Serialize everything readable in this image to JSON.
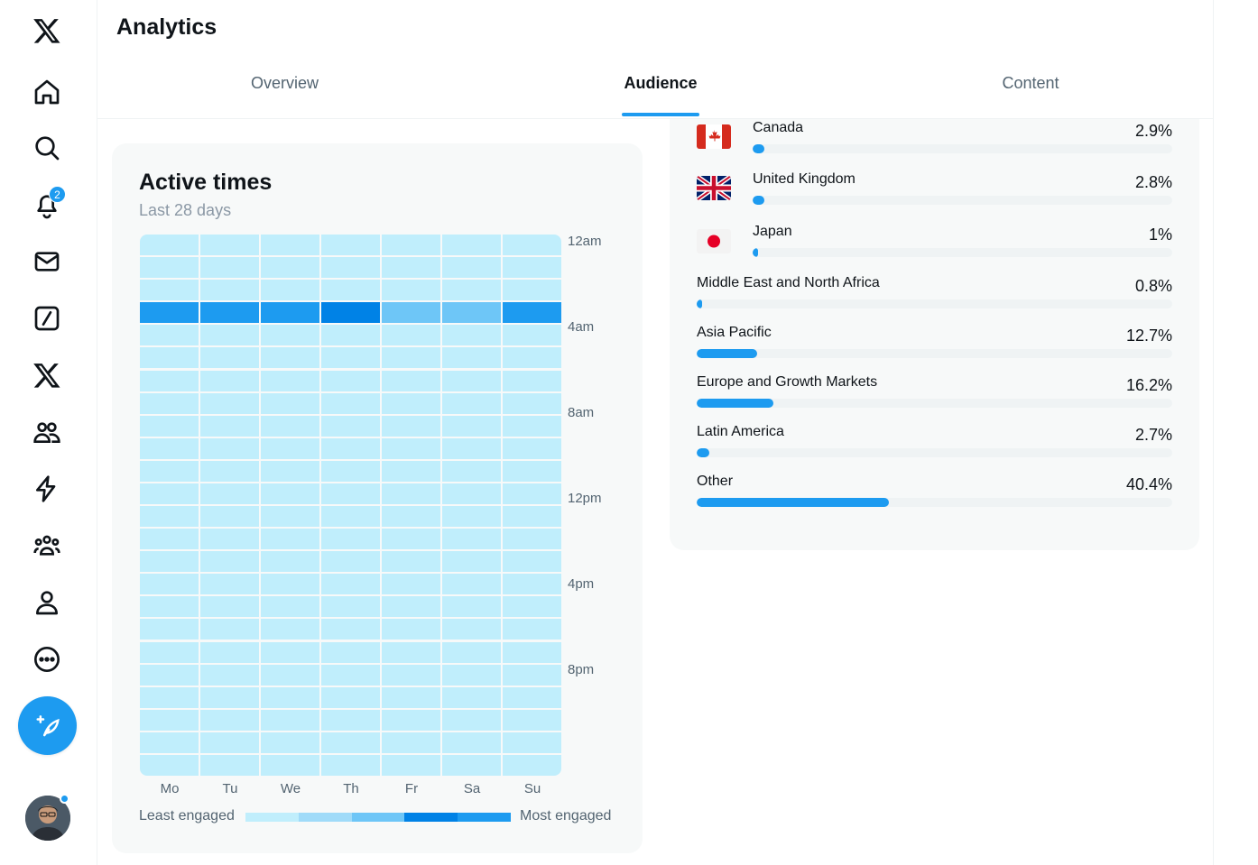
{
  "nav": {
    "items": [
      {
        "name": "x-logo-icon"
      },
      {
        "name": "home-icon"
      },
      {
        "name": "explore-icon"
      },
      {
        "name": "notifications-icon",
        "badge": "2"
      },
      {
        "name": "messages-icon"
      },
      {
        "name": "grok-icon"
      },
      {
        "name": "premium-icon"
      },
      {
        "name": "communities-icon"
      },
      {
        "name": "verified-orgs-icon"
      },
      {
        "name": "groups-icon"
      },
      {
        "name": "profile-icon"
      },
      {
        "name": "more-icon"
      }
    ],
    "post_button": "compose-post-icon"
  },
  "header": {
    "title": "Analytics",
    "tabs": [
      {
        "label": "Overview",
        "active": false
      },
      {
        "label": "Audience",
        "active": true
      },
      {
        "label": "Content",
        "active": false
      }
    ]
  },
  "active_times": {
    "title": "Active times",
    "subtitle": "Last 28 days",
    "y_labels": [
      "12am",
      "4am",
      "8am",
      "12pm",
      "4pm",
      "8pm"
    ],
    "days": [
      "Mo",
      "Tu",
      "We",
      "Th",
      "Fr",
      "Sa",
      "Su"
    ],
    "legend_left": "Least engaged",
    "legend_right": "Most engaged",
    "legend_colors": [
      "#c0eefc",
      "#a0dbf9",
      "#6ec6f7",
      "#0082e6",
      "#1d9bf0"
    ]
  },
  "chart_data": {
    "type": "heatmap",
    "title": "Active times",
    "subtitle": "Last 28 days",
    "x": [
      "Mo",
      "Tu",
      "We",
      "Th",
      "Fr",
      "Sa",
      "Su"
    ],
    "y_ticks": [
      "12am",
      "4am",
      "8am",
      "12pm",
      "4pm",
      "8pm"
    ],
    "hours": 24,
    "highlight_hour": 3,
    "levels_at_highlight_hour": [
      3,
      3,
      3,
      4,
      1,
      1,
      3
    ],
    "baseline_level": 0,
    "level_colors": [
      "#c0eefc",
      "#6ec6f7",
      "#6ec6f7",
      "#1d9bf0",
      "#0082e6"
    ]
  },
  "locations": [
    {
      "name": "Canada",
      "pct": "2.9%",
      "value": 2.9,
      "flag": "canada"
    },
    {
      "name": "United Kingdom",
      "pct": "2.8%",
      "value": 2.8,
      "flag": "uk"
    },
    {
      "name": "Japan",
      "pct": "1%",
      "value": 1.0,
      "flag": "japan"
    },
    {
      "name": "Middle East and North Africa",
      "pct": "0.8%",
      "value": 0.8
    },
    {
      "name": "Asia Pacific",
      "pct": "12.7%",
      "value": 12.7
    },
    {
      "name": "Europe and Growth Markets",
      "pct": "16.2%",
      "value": 16.2
    },
    {
      "name": "Latin America",
      "pct": "2.7%",
      "value": 2.7
    },
    {
      "name": "Other",
      "pct": "40.4%",
      "value": 40.4
    }
  ]
}
